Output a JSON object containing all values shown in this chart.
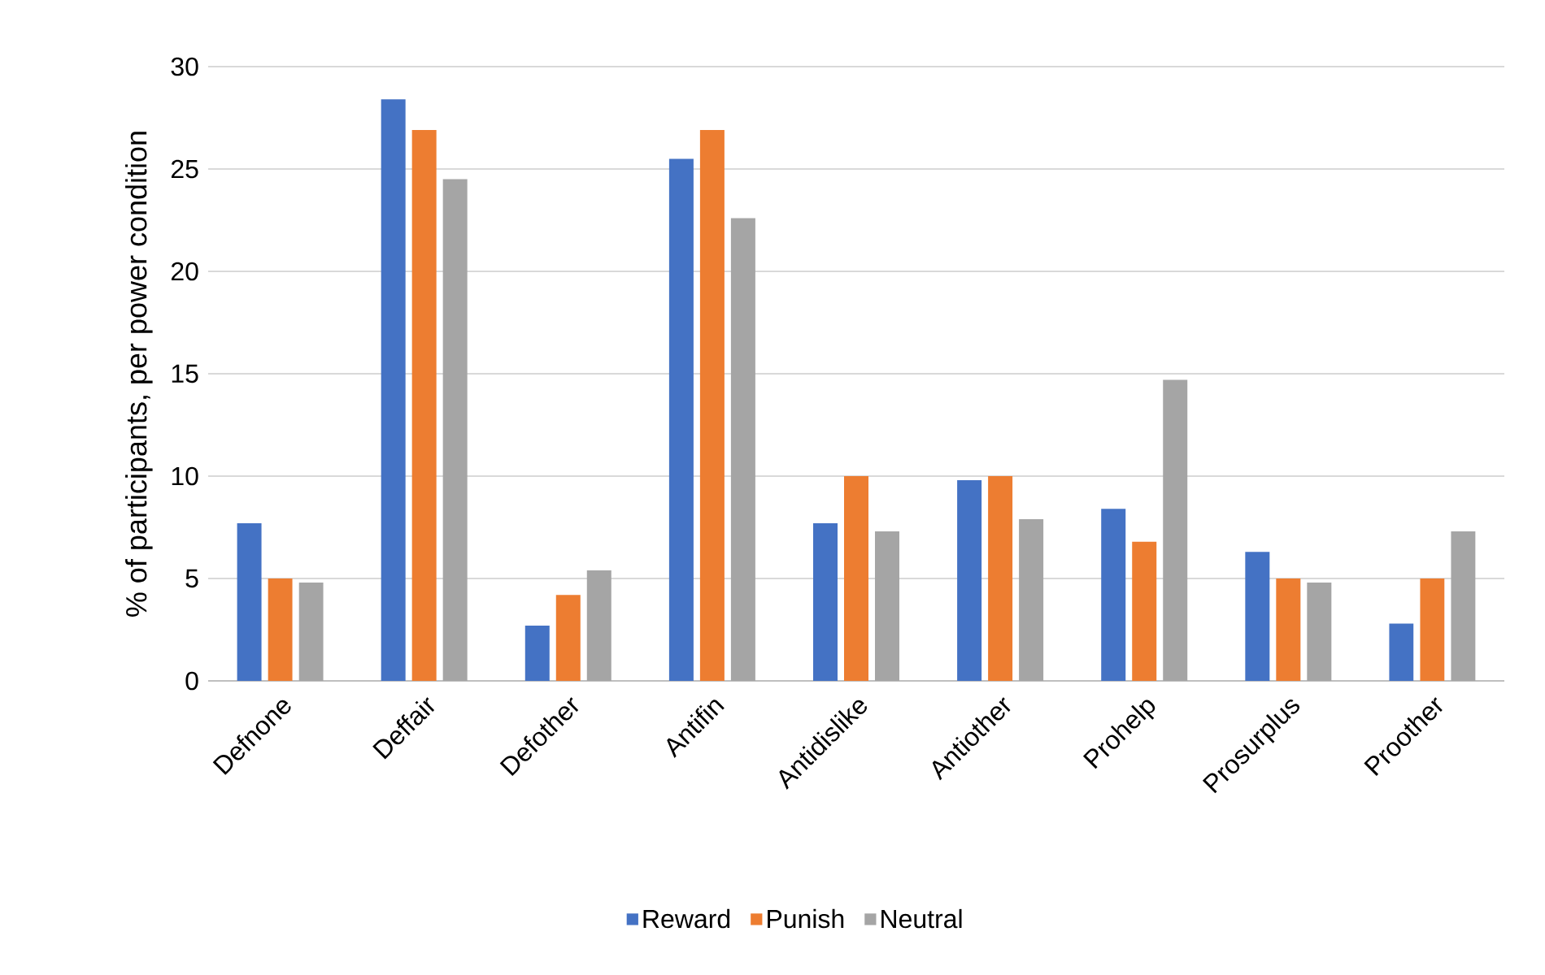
{
  "chart_data": {
    "type": "bar",
    "ylabel": "% of participants, per power condition",
    "categories": [
      "Defnone",
      "Deffair",
      "Defother",
      "Antifin",
      "Antidislike",
      "Antiother",
      "Prohelp",
      "Prosurplus",
      "Proother"
    ],
    "series": [
      {
        "name": "Reward",
        "color": "#4472c4",
        "values": [
          7.7,
          28.4,
          2.7,
          25.5,
          7.7,
          9.8,
          8.4,
          6.3,
          2.8
        ]
      },
      {
        "name": "Punish",
        "color": "#ed7d31",
        "values": [
          5.0,
          26.9,
          4.2,
          26.9,
          10.0,
          10.0,
          6.8,
          5.0,
          5.0
        ]
      },
      {
        "name": "Neutral",
        "color": "#a5a5a5",
        "values": [
          4.8,
          24.5,
          5.4,
          22.6,
          7.3,
          7.9,
          14.7,
          4.8,
          7.3
        ]
      }
    ],
    "ylim": [
      0,
      30
    ],
    "yticks": [
      0,
      5,
      10,
      15,
      20,
      25,
      30
    ],
    "grid": "y",
    "legend": "bottom"
  }
}
